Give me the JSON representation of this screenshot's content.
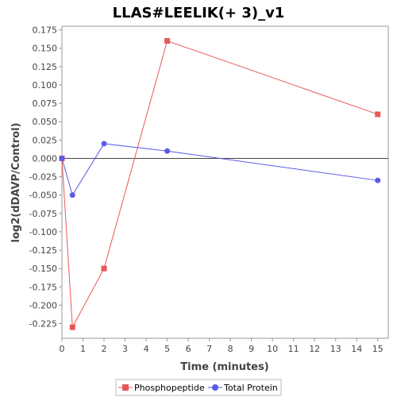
{
  "chart_data": {
    "type": "line",
    "title": "LLAS#LEELIK(+ 3)_v1",
    "xlabel": "Time (minutes)",
    "ylabel": "log2(dDAVP/Control)",
    "xlim": [
      0,
      15.5
    ],
    "ylim": [
      -0.245,
      0.18
    ],
    "x_ticks": [
      0,
      1,
      2,
      3,
      4,
      5,
      6,
      7,
      8,
      9,
      10,
      11,
      12,
      13,
      14,
      15
    ],
    "x_tick_labels": [
      "0",
      "1",
      "2",
      "3",
      "4",
      "5",
      "6",
      "7",
      "8",
      "9",
      "10",
      "11",
      "12",
      "13",
      "14",
      "15"
    ],
    "y_ticks": [
      0.175,
      0.15,
      0.125,
      0.1,
      0.075,
      0.05,
      0.025,
      0.0,
      -0.025,
      -0.05,
      -0.075,
      -0.1,
      -0.125,
      -0.15,
      -0.175,
      -0.2,
      -0.225
    ],
    "y_tick_labels": [
      "0.175",
      "0.150",
      "0.125",
      "0.100",
      "0.075",
      "0.050",
      "0.025",
      "0.000",
      "-0.025",
      "-0.050",
      "-0.075",
      "-0.100",
      "-0.125",
      "-0.150",
      "-0.175",
      "-0.200",
      "-0.225"
    ],
    "grid": false,
    "zero_line": true,
    "legend_position": "bottom",
    "series": [
      {
        "name": "Phosphopeptide",
        "color": "#e8585a",
        "marker": "square",
        "x": [
          0,
          0.5,
          2,
          5,
          15
        ],
        "values": [
          0.0,
          -0.23,
          -0.15,
          0.16,
          0.06
        ]
      },
      {
        "name": "Total Protein",
        "color": "#5a5ae8",
        "marker": "circle",
        "x": [
          0,
          0.5,
          2,
          5,
          15
        ],
        "values": [
          0.0,
          -0.05,
          0.02,
          0.01,
          -0.03
        ]
      }
    ]
  }
}
